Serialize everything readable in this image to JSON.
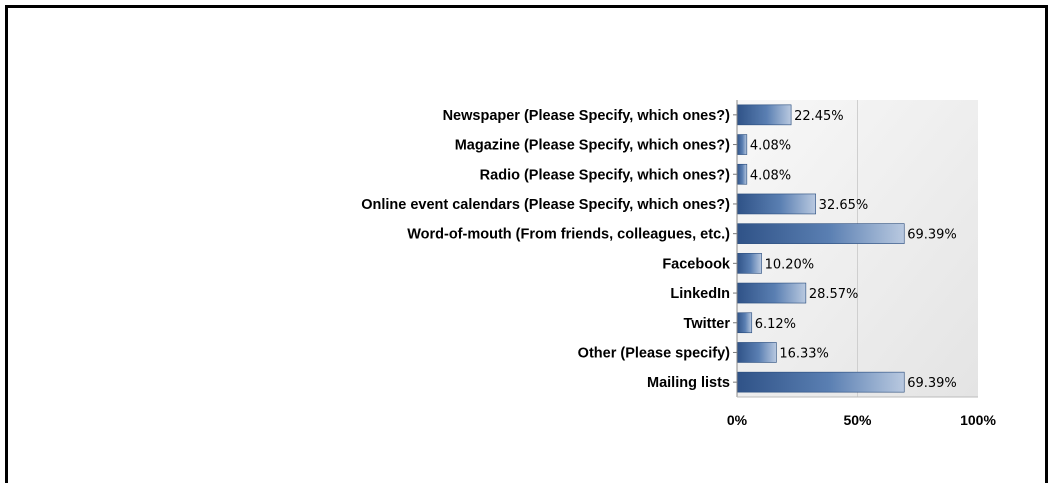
{
  "chart_data": {
    "type": "bar",
    "orientation": "horizontal",
    "categories": [
      "Newspaper (Please Specify, which ones?)",
      "Magazine (Please Specify, which ones?)",
      "Radio (Please Specify, which ones?)",
      "Online event calendars (Please Specify, which ones?)",
      "Word-of-mouth (From friends, colleagues, etc.)",
      "Facebook",
      "LinkedIn",
      "Twitter",
      "Other (Please specify)",
      "Mailing lists"
    ],
    "values": [
      22.45,
      4.08,
      4.08,
      32.65,
      69.39,
      10.2,
      28.57,
      6.12,
      16.33,
      69.39
    ],
    "data_labels": [
      "22.45%",
      "4.08%",
      "4.08%",
      "32.65%",
      "69.39%",
      "10.20%",
      "28.57%",
      "6.12%",
      "16.33%",
      "69.39%"
    ],
    "xlim": [
      0,
      100
    ],
    "x_ticks": [
      0,
      50,
      100
    ],
    "x_tick_labels": [
      "0%",
      "50%",
      "100%"
    ],
    "grid": true,
    "colors": {
      "bar_dark": "#2f5287",
      "bar_mid": "#5a7fb2",
      "bar_light": "#b9c9e0",
      "plot_bg_light": "#f8f8f8",
      "plot_bg_dark": "#e4e4e4",
      "gridline": "#cfcfcf"
    }
  }
}
